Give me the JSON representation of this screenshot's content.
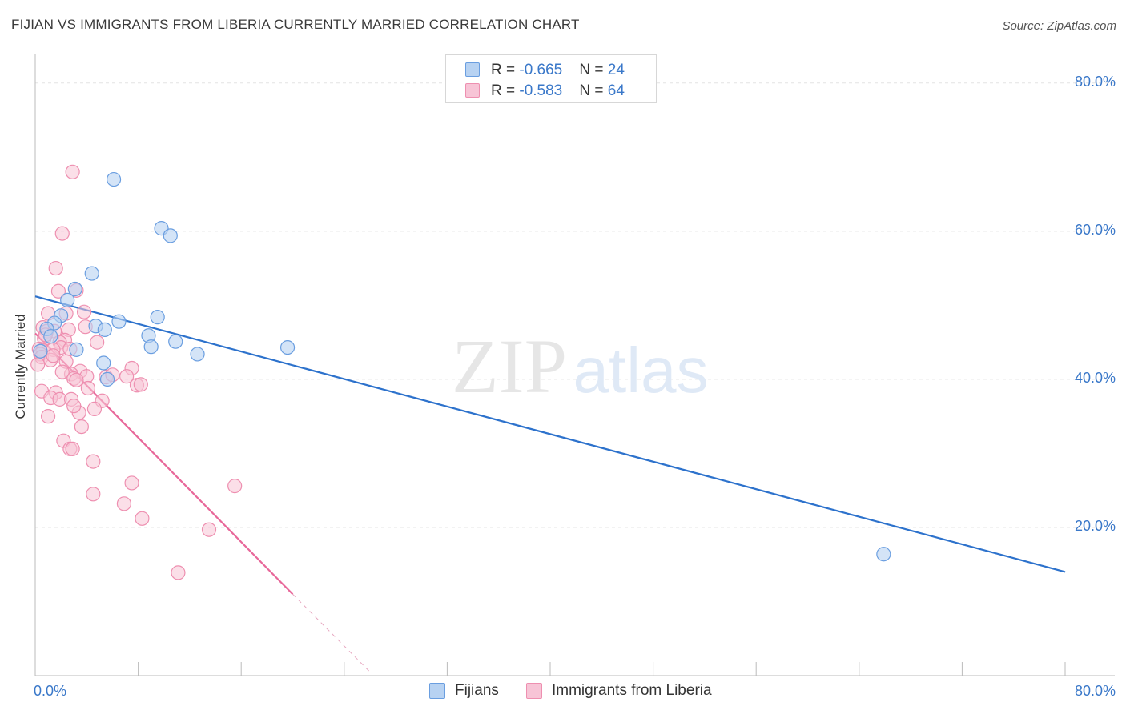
{
  "title": "FIJIAN VS IMMIGRANTS FROM LIBERIA CURRENTLY MARRIED CORRELATION CHART",
  "source": "Source: ZipAtlas.com",
  "watermark": {
    "zip": "ZIP",
    "atlas": "atlas"
  },
  "legend_top": [
    {
      "r_label": "R = ",
      "r_value": "-0.665",
      "n_label": "N = ",
      "n_value": "24"
    },
    {
      "r_label": "R = ",
      "r_value": "-0.583",
      "n_label": "N = ",
      "n_value": "64"
    }
  ],
  "legend_bottom": [
    "Fijians",
    "Immigrants from Liberia"
  ],
  "colors": {
    "blue_fill": "#b7d2f2",
    "blue_stroke": "#6a9ee0",
    "blue_line": "#2d72cc",
    "pink_fill": "#f7c4d6",
    "pink_stroke": "#ee8fb0",
    "pink_line": "#e8689a",
    "axis_label": "#3a78c9"
  },
  "chart_data": {
    "type": "scatter",
    "title": "FIJIAN VS IMMIGRANTS FROM LIBERIA CURRENTLY MARRIED CORRELATION CHART",
    "xlabel": "",
    "ylabel": "Currently Married",
    "xlim": [
      0,
      80
    ],
    "ylim": [
      0,
      83
    ],
    "x_tick_labels": [
      "0.0%",
      "80.0%"
    ],
    "y_ticks": [
      20,
      40,
      60,
      80
    ],
    "y_tick_labels": [
      "20.0%",
      "40.0%",
      "60.0%",
      "80.0%"
    ],
    "grid": true,
    "legend_placement": "top-center",
    "series": [
      {
        "name": "Fijians",
        "r": -0.665,
        "n": 24,
        "trend": {
          "x": [
            0,
            80
          ],
          "y": [
            51.2,
            14.0
          ]
        },
        "points": [
          [
            6.1,
            67.0
          ],
          [
            9.8,
            60.4
          ],
          [
            10.5,
            59.4
          ],
          [
            4.4,
            54.3
          ],
          [
            3.1,
            52.2
          ],
          [
            2.5,
            50.7
          ],
          [
            2.0,
            48.6
          ],
          [
            9.5,
            48.4
          ],
          [
            6.5,
            47.8
          ],
          [
            1.5,
            47.6
          ],
          [
            4.7,
            47.2
          ],
          [
            5.4,
            46.7
          ],
          [
            0.9,
            46.8
          ],
          [
            8.8,
            45.9
          ],
          [
            1.2,
            45.8
          ],
          [
            10.9,
            45.1
          ],
          [
            9.0,
            44.4
          ],
          [
            19.6,
            44.3
          ],
          [
            3.2,
            44.0
          ],
          [
            12.6,
            43.4
          ],
          [
            0.4,
            43.8
          ],
          [
            5.3,
            42.2
          ],
          [
            5.6,
            40.0
          ],
          [
            65.9,
            16.4
          ]
        ]
      },
      {
        "name": "Immigrants from Liberia",
        "r": -0.583,
        "n": 64,
        "trend": {
          "x": [
            0,
            20.0
          ],
          "y": [
            46.2,
            11.0
          ]
        },
        "trend_dashed": {
          "x": [
            20.0,
            26.0
          ],
          "y": [
            11.0,
            0.5
          ]
        },
        "points": [
          [
            2.9,
            68.0
          ],
          [
            2.1,
            59.7
          ],
          [
            1.6,
            55.0
          ],
          [
            3.2,
            52.0
          ],
          [
            1.8,
            51.9
          ],
          [
            1.0,
            48.9
          ],
          [
            3.8,
            49.1
          ],
          [
            2.4,
            48.9
          ],
          [
            0.6,
            47.0
          ],
          [
            0.9,
            46.5
          ],
          [
            1.5,
            46.5
          ],
          [
            2.6,
            46.7
          ],
          [
            3.9,
            47.1
          ],
          [
            0.7,
            45.5
          ],
          [
            2.3,
            45.3
          ],
          [
            1.9,
            45.0
          ],
          [
            2.0,
            44.3
          ],
          [
            0.3,
            44.1
          ],
          [
            0.6,
            43.9
          ],
          [
            1.4,
            44.0
          ],
          [
            2.7,
            44.1
          ],
          [
            4.8,
            45.0
          ],
          [
            0.4,
            43.4
          ],
          [
            0.5,
            43.0
          ],
          [
            1.2,
            42.6
          ],
          [
            2.4,
            42.4
          ],
          [
            0.2,
            42.0
          ],
          [
            3.5,
            41.1
          ],
          [
            7.5,
            41.5
          ],
          [
            2.8,
            40.7
          ],
          [
            3.0,
            40.1
          ],
          [
            4.0,
            40.4
          ],
          [
            5.5,
            40.3
          ],
          [
            6.0,
            40.6
          ],
          [
            7.1,
            40.4
          ],
          [
            3.2,
            39.9
          ],
          [
            7.9,
            39.2
          ],
          [
            8.2,
            39.3
          ],
          [
            0.5,
            38.4
          ],
          [
            1.6,
            38.2
          ],
          [
            1.2,
            37.5
          ],
          [
            1.9,
            37.3
          ],
          [
            2.8,
            37.3
          ],
          [
            5.2,
            37.1
          ],
          [
            1.0,
            35.0
          ],
          [
            3.4,
            35.5
          ],
          [
            4.6,
            36.0
          ],
          [
            3.6,
            33.6
          ],
          [
            2.2,
            31.7
          ],
          [
            2.7,
            30.6
          ],
          [
            2.9,
            30.6
          ],
          [
            4.5,
            28.9
          ],
          [
            7.5,
            26.0
          ],
          [
            15.5,
            25.6
          ],
          [
            4.5,
            24.5
          ],
          [
            6.9,
            23.2
          ],
          [
            8.3,
            21.2
          ],
          [
            13.5,
            19.7
          ],
          [
            11.1,
            13.9
          ],
          [
            0.8,
            46.0
          ],
          [
            1.4,
            43.2
          ],
          [
            2.1,
            41.0
          ],
          [
            4.1,
            38.8
          ],
          [
            3.0,
            36.4
          ]
        ]
      }
    ]
  }
}
